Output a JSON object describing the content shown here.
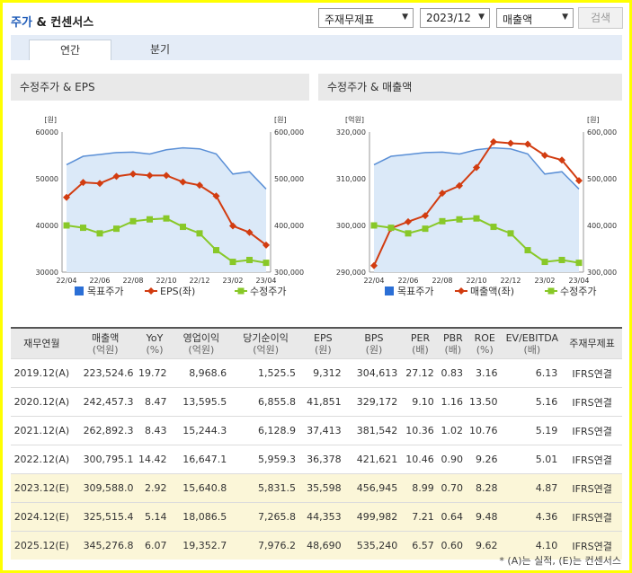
{
  "header": {
    "title_blue": "주가",
    "title_rest": " & 컨센서스",
    "select_type": "주재무제표",
    "select_period": "2023/12",
    "select_item": "매출액",
    "search_label": "검색"
  },
  "tabs": [
    "연간",
    "분기"
  ],
  "left_panel": {
    "title": "수정주가 & EPS"
  },
  "right_panel": {
    "title": "수정주가 & 매출액"
  },
  "colors": {
    "target": "#5a8fd6",
    "red": "#d23c10",
    "green": "#88c828",
    "fill": "#dbe9f8",
    "legend_blue": "#2b6fd6"
  },
  "chart_data": [
    {
      "type": "line",
      "x": [
        "22/04",
        "22/05",
        "22/06",
        "22/07",
        "22/08",
        "22/09",
        "22/10",
        "22/11",
        "22/12",
        "23/01",
        "23/02",
        "23/03",
        "23/04"
      ],
      "x_tick_labels": [
        "22/04",
        "22/06",
        "22/08",
        "22/10",
        "22/12",
        "23/02",
        "23/04"
      ],
      "left_unit": "[원]",
      "right_unit": "[원]",
      "left_ticks": [
        "60000",
        "50000",
        "40000",
        "30000"
      ],
      "right_ticks": [
        "600,000",
        "500,000",
        "400,000",
        "300,000"
      ],
      "left_range": [
        30000,
        60000
      ],
      "right_range": [
        300000,
        600000
      ],
      "series": [
        {
          "name": "목표주가",
          "axis": "right",
          "values": [
            530000,
            548000,
            552000,
            556000,
            557000,
            553000,
            562000,
            566000,
            564000,
            553000,
            510000,
            515000,
            478000
          ]
        },
        {
          "name": "EPS(좌)",
          "axis": "left",
          "values": [
            46000,
            49200,
            49000,
            50500,
            51000,
            50700,
            50700,
            49300,
            48600,
            46300,
            39900,
            38500,
            35800
          ]
        },
        {
          "name": "수정주가",
          "axis": "right",
          "values": [
            400000,
            395000,
            383000,
            393000,
            409000,
            413000,
            415000,
            397000,
            383000,
            347000,
            322000,
            326000,
            320000
          ]
        }
      ]
    },
    {
      "type": "line",
      "x": [
        "22/04",
        "22/05",
        "22/06",
        "22/07",
        "22/08",
        "22/09",
        "22/10",
        "22/11",
        "22/12",
        "23/01",
        "23/02",
        "23/03",
        "23/04"
      ],
      "x_tick_labels": [
        "22/04",
        "22/06",
        "22/08",
        "22/10",
        "22/12",
        "23/02",
        "23/04"
      ],
      "left_unit": "[억원]",
      "right_unit": "[원]",
      "left_ticks": [
        "320,000",
        "310,000",
        "300,000",
        "290,000"
      ],
      "right_ticks": [
        "600,000",
        "500,000",
        "400,000",
        "300,000"
      ],
      "left_range": [
        290000,
        320000
      ],
      "right_range": [
        300000,
        600000
      ],
      "series": [
        {
          "name": "목표주가",
          "axis": "right",
          "values": [
            530000,
            548000,
            552000,
            556000,
            557000,
            553000,
            562000,
            566000,
            564000,
            553000,
            510000,
            515000,
            478000
          ]
        },
        {
          "name": "매출액(좌)",
          "axis": "left",
          "values": [
            291400,
            299400,
            300800,
            302100,
            306900,
            308500,
            312400,
            317900,
            317600,
            317400,
            315000,
            314000,
            309600
          ]
        },
        {
          "name": "수정주가",
          "axis": "right",
          "values": [
            400000,
            395000,
            383000,
            393000,
            409000,
            413000,
            415000,
            397000,
            383000,
            347000,
            322000,
            326000,
            320000
          ]
        }
      ]
    }
  ],
  "table": {
    "headers": [
      {
        "l1": "재무연월",
        "l2": ""
      },
      {
        "l1": "매출액",
        "l2": "(억원)"
      },
      {
        "l1": "YoY",
        "l2": "(%)"
      },
      {
        "l1": "영업이익",
        "l2": "(억원)"
      },
      {
        "l1": "당기순이익",
        "l2": "(억원)"
      },
      {
        "l1": "EPS",
        "l2": "(원)"
      },
      {
        "l1": "BPS",
        "l2": "(원)"
      },
      {
        "l1": "PER",
        "l2": "(배)"
      },
      {
        "l1": "PBR",
        "l2": "(배)"
      },
      {
        "l1": "ROE",
        "l2": "(%)"
      },
      {
        "l1": "EV/EBITDA",
        "l2": "(배)"
      },
      {
        "l1": "주재무제표",
        "l2": ""
      }
    ],
    "rows": [
      [
        "2019.12(A)",
        "223,524.6",
        "19.72",
        "8,968.6",
        "1,525.5",
        "9,312",
        "304,613",
        "27.12",
        "0.83",
        "3.16",
        "6.13",
        "IFRS연결"
      ],
      [
        "2020.12(A)",
        "242,457.3",
        "8.47",
        "13,595.5",
        "6,855.8",
        "41,851",
        "329,172",
        "9.10",
        "1.16",
        "13.50",
        "5.16",
        "IFRS연결"
      ],
      [
        "2021.12(A)",
        "262,892.3",
        "8.43",
        "15,244.3",
        "6,128.9",
        "37,413",
        "381,542",
        "10.36",
        "1.02",
        "10.76",
        "5.19",
        "IFRS연결"
      ],
      [
        "2022.12(A)",
        "300,795.1",
        "14.42",
        "16,647.1",
        "5,959.3",
        "36,378",
        "421,621",
        "10.46",
        "0.90",
        "9.26",
        "5.01",
        "IFRS연결"
      ],
      [
        "2023.12(E)",
        "309,588.0",
        "2.92",
        "15,640.8",
        "5,831.5",
        "35,598",
        "456,945",
        "8.99",
        "0.70",
        "8.28",
        "4.87",
        "IFRS연결"
      ],
      [
        "2024.12(E)",
        "325,515.4",
        "5.14",
        "18,086.5",
        "7,265.8",
        "44,353",
        "499,982",
        "7.21",
        "0.64",
        "9.48",
        "4.36",
        "IFRS연결"
      ],
      [
        "2025.12(E)",
        "345,276.8",
        "6.07",
        "19,352.7",
        "7,976.2",
        "48,690",
        "535,240",
        "6.57",
        "0.60",
        "9.62",
        "4.10",
        "IFRS연결"
      ]
    ]
  },
  "footnote": "* (A)는 실적, (E)는 컨센서스"
}
